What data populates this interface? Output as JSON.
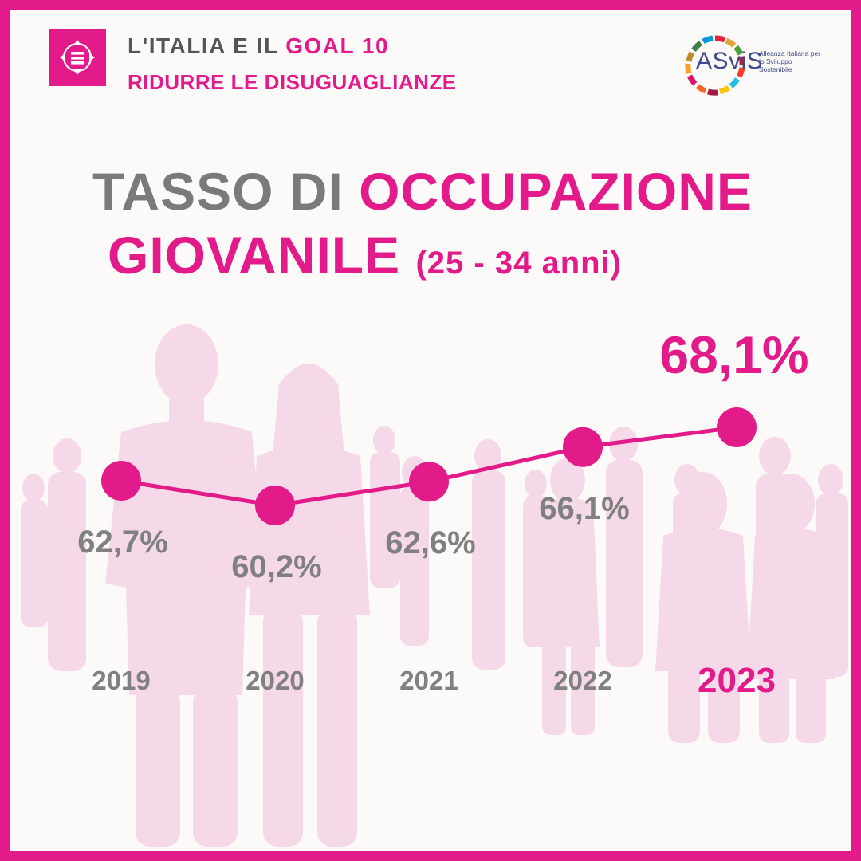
{
  "header": {
    "line1_prefix": "L'ITALIA E IL ",
    "line1_highlight": "GOAL 10",
    "line2": "RIDURRE LE DISUGUAGLIANZE"
  },
  "logo": {
    "word": "ASviS",
    "tagline": "Alleanza Italiana per lo Sviluppo Sostenibile"
  },
  "title": {
    "part1": "TASSO DI ",
    "part2": "OCCUPAZIONE",
    "part3": "GIOVANILE",
    "part4": "(25 - 34 anni)"
  },
  "colors": {
    "accent": "#e31a8a",
    "text_gray": "#808080",
    "background": "#fbfaf8",
    "silhouette": "#f6d9e8"
  },
  "icons": [
    "goal-10-icon",
    "asvis-logo-ring"
  ],
  "chart_data": {
    "type": "line",
    "categories": [
      "2019",
      "2020",
      "2021",
      "2022",
      "2023"
    ],
    "values": [
      62.7,
      60.2,
      62.6,
      66.1,
      68.1
    ],
    "value_labels": [
      "62,7%",
      "60,2%",
      "62,6%",
      "66,1%",
      "68,1%"
    ],
    "highlight": "2023",
    "grid": false,
    "legend": "none"
  }
}
